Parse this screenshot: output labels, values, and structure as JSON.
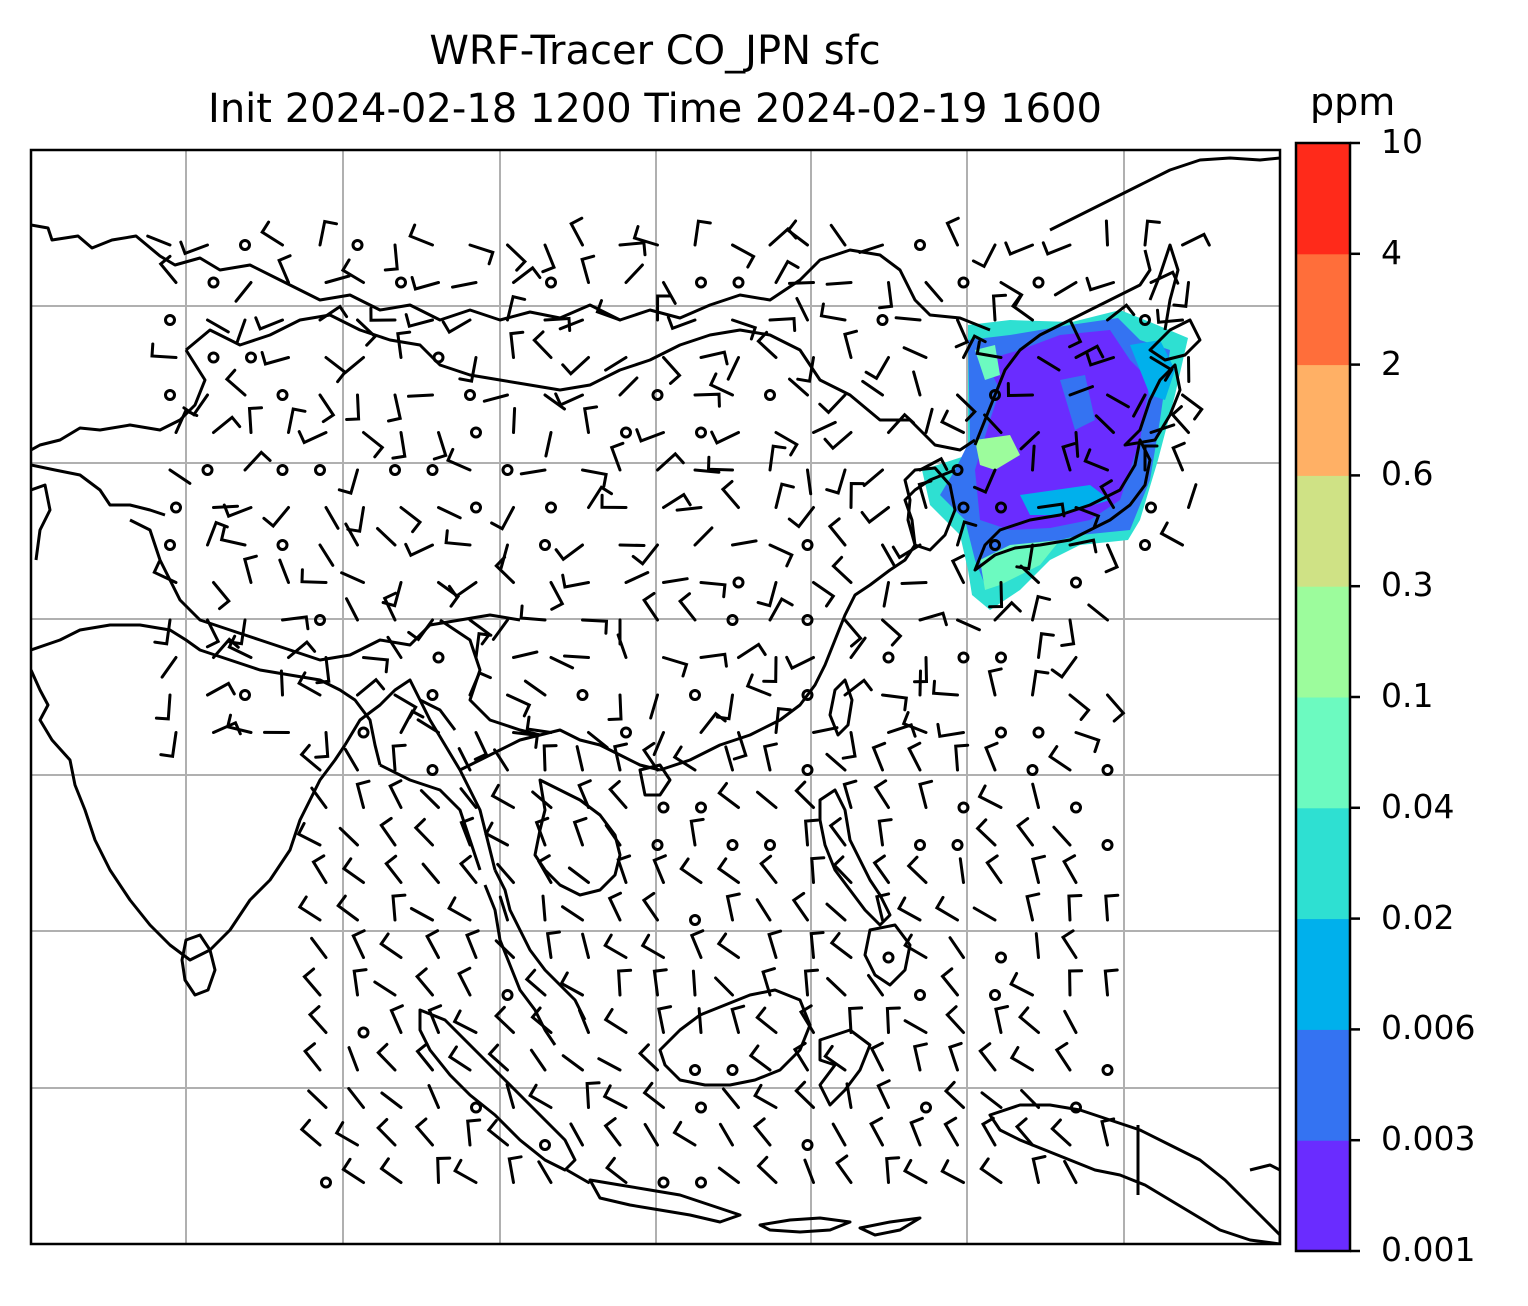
{
  "title": {
    "line1": "WRF-Tracer CO_JPN sfc",
    "line2": "Init 2024-02-18 1200 Time 2024-02-19 1600"
  },
  "colorbar": {
    "unit": "ppm",
    "levels": [
      "0.001",
      "0.003",
      "0.006",
      "0.02",
      "0.04",
      "0.1",
      "0.3",
      "0.6",
      "2",
      "4",
      "10"
    ],
    "colors": [
      "#6a2cff",
      "#3473f2",
      "#00b0ec",
      "#2ee0d2",
      "#6cfac0",
      "#9cfc9c",
      "#cfe285",
      "#ffb065",
      "#ff6e3a",
      "#ff2a1a"
    ]
  },
  "map": {
    "layers": [
      "coastlines",
      "borders",
      "gridlines",
      "wind-barbs",
      "tracer-concentration"
    ],
    "tracer_region": "Japan / Sea of Japan"
  }
}
